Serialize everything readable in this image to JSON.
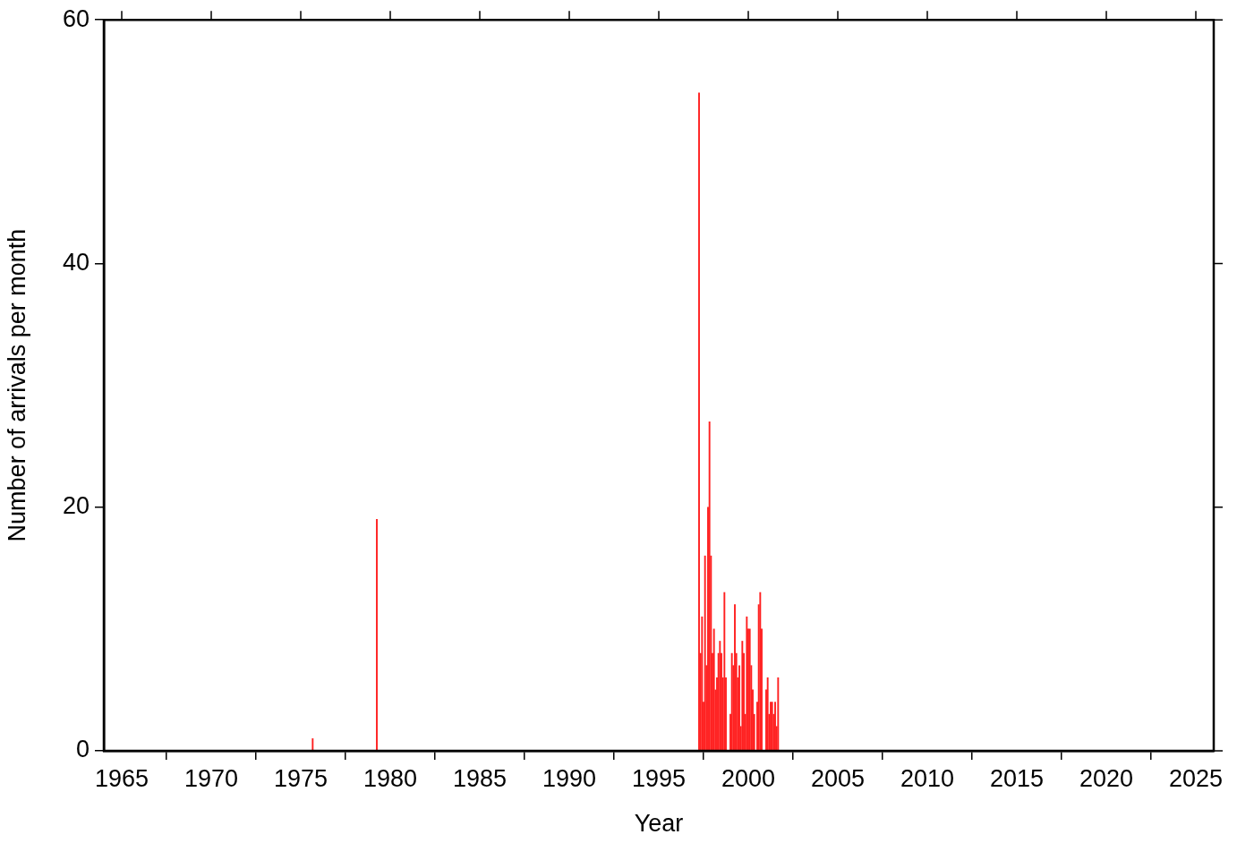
{
  "chart_data": {
    "type": "bar",
    "xlabel": "Year",
    "ylabel": "Number of arrivals per month",
    "x": [
      "1975-09",
      "1979-04",
      "1997-04",
      "1997-05",
      "1997-06",
      "1997-07",
      "1997-08",
      "1997-09",
      "1997-10",
      "1997-11",
      "1997-12",
      "1998-01",
      "1998-02",
      "1998-03",
      "1998-04",
      "1998-05",
      "1998-06",
      "1998-07",
      "1998-08",
      "1998-09",
      "1998-10",
      "1998-11",
      "1998-12",
      "1999-01",
      "1999-02",
      "1999-03",
      "1999-04",
      "1999-05",
      "1999-06",
      "1999-07",
      "1999-08",
      "1999-09",
      "1999-10",
      "1999-11",
      "1999-12",
      "2000-01",
      "2000-02",
      "2000-03",
      "2000-04",
      "2000-05",
      "2000-06",
      "2000-07",
      "2000-08",
      "2000-09",
      "2000-10",
      "2000-11",
      "2000-12",
      "2001-01",
      "2001-02",
      "2001-03",
      "2001-04",
      "2001-05",
      "2001-06",
      "2001-07",
      "2001-08",
      "2001-09"
    ],
    "values": [
      1,
      19,
      54,
      8,
      11,
      4,
      16,
      7,
      20,
      27,
      16,
      8,
      10,
      5,
      6,
      8,
      9,
      8,
      6,
      13,
      6,
      0,
      0,
      3,
      8,
      7,
      12,
      8,
      6,
      7,
      2,
      9,
      8,
      3,
      11,
      10,
      10,
      7,
      5,
      3,
      0,
      4,
      12,
      13,
      10,
      0,
      0,
      5,
      6,
      3,
      4,
      4,
      3,
      4,
      2,
      6
    ],
    "color": "#ff2020",
    "xlim": [
      "1964",
      "2026"
    ],
    "xticks": [
      "1965",
      "1970",
      "1975",
      "1980",
      "1985",
      "1990",
      "1995",
      "2000",
      "2005",
      "2010",
      "2015",
      "2020",
      "2025"
    ],
    "ylim": [
      0,
      60
    ],
    "yticks": [
      0,
      20,
      40,
      60
    ],
    "grid": false,
    "legend": false
  }
}
